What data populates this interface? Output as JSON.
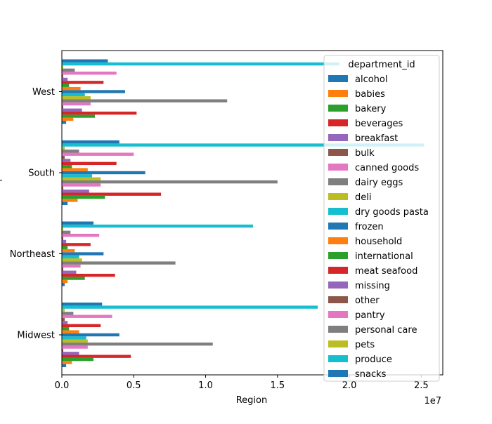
{
  "chart_data": {
    "type": "bar",
    "orientation": "horizontal",
    "title": "",
    "xlabel": "Region",
    "ylabel": "",
    "x_offset_label": "1e7",
    "xlim": [
      0,
      26500000
    ],
    "xticks": [
      0,
      5000000,
      10000000,
      15000000,
      20000000,
      25000000
    ],
    "xtick_labels": [
      "0.0",
      "0.5",
      "1.0",
      "1.5",
      "2.0",
      "2.5"
    ],
    "categories": [
      "Midwest",
      "Northeast",
      "South",
      "West"
    ],
    "legend": {
      "title": "department_id",
      "placement": "upper right"
    },
    "grid": false,
    "series": [
      {
        "name": "alcohol",
        "color": "#1f77b4",
        "values": [
          300000,
          200000,
          400000,
          300000
        ]
      },
      {
        "name": "babies",
        "color": "#ff7f0e",
        "values": [
          700000,
          400000,
          1100000,
          800000
        ]
      },
      {
        "name": "bakery",
        "color": "#2ca02c",
        "values": [
          2200000,
          1600000,
          3000000,
          2300000
        ]
      },
      {
        "name": "beverages",
        "color": "#d62728",
        "values": [
          4800000,
          3700000,
          6900000,
          5200000
        ]
      },
      {
        "name": "breakfast",
        "color": "#9467bd",
        "values": [
          1200000,
          1000000,
          1900000,
          1400000
        ]
      },
      {
        "name": "bulk",
        "color": "#8c564b",
        "values": [
          100000,
          100000,
          100000,
          100000
        ]
      },
      {
        "name": "canned goods",
        "color": "#e377c2",
        "values": [
          1800000,
          1300000,
          2700000,
          2000000
        ]
      },
      {
        "name": "dairy eggs",
        "color": "#7f7f7f",
        "values": [
          10500000,
          7900000,
          15000000,
          11500000
        ]
      },
      {
        "name": "deli",
        "color": "#bcbd22",
        "values": [
          1800000,
          1400000,
          2700000,
          2000000
        ]
      },
      {
        "name": "dry goods pasta",
        "color": "#17becf",
        "values": [
          1700000,
          1200000,
          2100000,
          1600000
        ]
      },
      {
        "name": "frozen",
        "color": "#1f77b4",
        "values": [
          4000000,
          2900000,
          5800000,
          4400000
        ]
      },
      {
        "name": "household",
        "color": "#ff7f0e",
        "values": [
          1200000,
          900000,
          1800000,
          1300000
        ]
      },
      {
        "name": "international",
        "color": "#2ca02c",
        "values": [
          500000,
          400000,
          700000,
          500000
        ]
      },
      {
        "name": "meat seafood",
        "color": "#d62728",
        "values": [
          2700000,
          2000000,
          3800000,
          2900000
        ]
      },
      {
        "name": "missing",
        "color": "#9467bd",
        "values": [
          400000,
          300000,
          600000,
          400000
        ]
      },
      {
        "name": "other",
        "color": "#8c564b",
        "values": [
          200000,
          100000,
          200000,
          100000
        ]
      },
      {
        "name": "pantry",
        "color": "#e377c2",
        "values": [
          3500000,
          2600000,
          5000000,
          3800000
        ]
      },
      {
        "name": "personal care",
        "color": "#7f7f7f",
        "values": [
          800000,
          600000,
          1200000,
          900000
        ]
      },
      {
        "name": "pets",
        "color": "#bcbd22",
        "values": [
          200000,
          100000,
          200000,
          100000
        ]
      },
      {
        "name": "produce",
        "color": "#17becf",
        "values": [
          17800000,
          13300000,
          25200000,
          19300000
        ]
      },
      {
        "name": "snacks",
        "color": "#1f77b4",
        "values": [
          2800000,
          2200000,
          4000000,
          3200000
        ]
      }
    ]
  }
}
